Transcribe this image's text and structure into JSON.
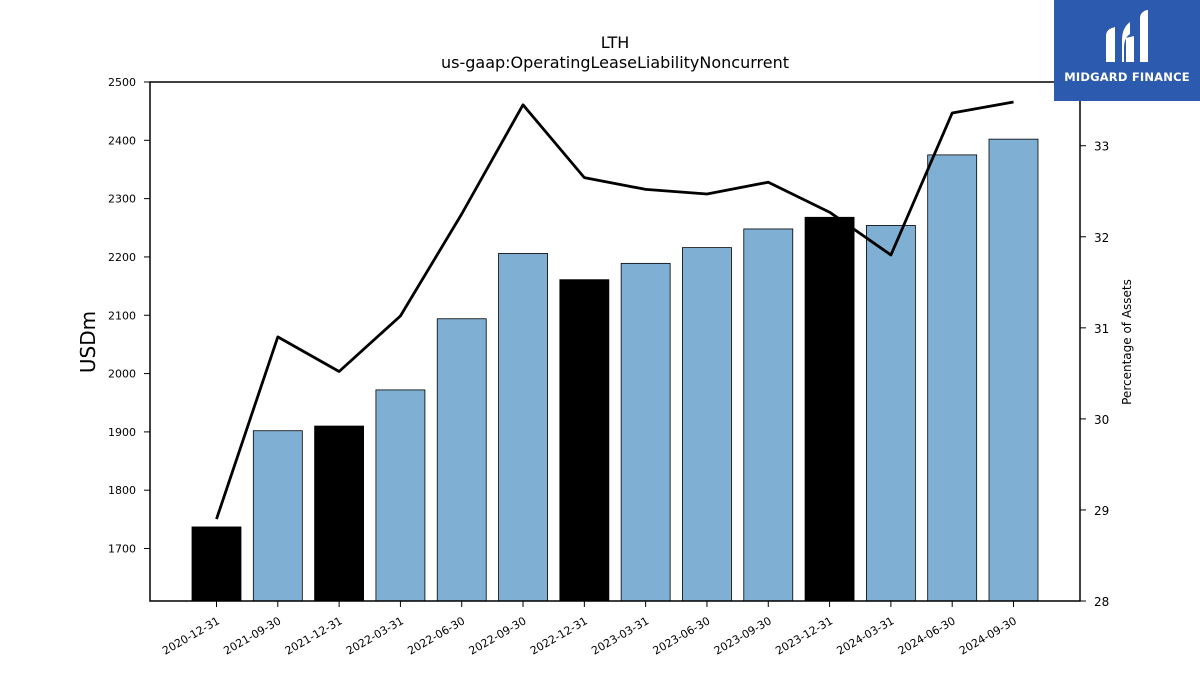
{
  "brand": {
    "name": "MIDGARD FINANCE",
    "color": "#2b5aae"
  },
  "chart_data": {
    "type": "bar",
    "title": "LTH",
    "subtitle": "us-gaap:OperatingLeaseLiabilityNoncurrent",
    "ylabel": "USDm",
    "y2label": "Percentage of Assets",
    "ylim": [
      1610,
      2500
    ],
    "y2lim": [
      28,
      33.7
    ],
    "yticks": [
      1700,
      1800,
      1900,
      2000,
      2100,
      2200,
      2300,
      2400,
      2500
    ],
    "y2ticks": [
      28,
      29,
      30,
      31,
      32,
      33
    ],
    "categories": [
      "2020-12-31",
      "2021-09-30",
      "2021-12-31",
      "2022-03-31",
      "2022-06-30",
      "2022-09-30",
      "2022-12-31",
      "2023-03-31",
      "2023-06-30",
      "2023-09-30",
      "2023-12-31",
      "2024-03-31",
      "2024-06-30",
      "2024-09-30"
    ],
    "series": [
      {
        "type": "bar",
        "values": [
          1737,
          1902,
          1910,
          1972,
          2094,
          2206,
          2161,
          2189,
          2216,
          2248,
          2268,
          2254,
          2375,
          2402
        ],
        "colors": [
          "#000000",
          "#7fb0d4",
          "#000000",
          "#7fb0d4",
          "#7fb0d4",
          "#7fb0d4",
          "#000000",
          "#7fb0d4",
          "#7fb0d4",
          "#7fb0d4",
          "#000000",
          "#7fb0d4",
          "#7fb0d4",
          "#7fb0d4"
        ]
      },
      {
        "type": "line",
        "axis": "right",
        "color": "#000000",
        "values": [
          28.9,
          30.9,
          30.52,
          31.13,
          32.25,
          33.45,
          32.65,
          32.52,
          32.47,
          32.6,
          32.27,
          31.8,
          33.36,
          33.48
        ]
      }
    ],
    "grid": false,
    "legend": "none"
  }
}
